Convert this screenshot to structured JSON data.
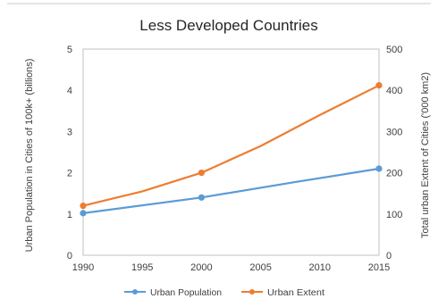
{
  "chart_data": {
    "type": "line",
    "title": "Less Developed Countries",
    "x_ticks": [
      1990,
      1995,
      2000,
      2005,
      2010,
      2015
    ],
    "xlim": [
      1990,
      2015
    ],
    "ylabel_left": "Urban Population in Cities of 100k+ (billions)",
    "ylabel_right": "Total urban Extent of Cities ('000 km2)",
    "ylim_left": [
      0,
      5
    ],
    "yticks_left": [
      0,
      1,
      2,
      3,
      4,
      5
    ],
    "ylim_right": [
      0,
      500
    ],
    "yticks_right": [
      0,
      100,
      200,
      300,
      400,
      500
    ],
    "grid": false,
    "legend_position": "bottom",
    "series": [
      {
        "name": "Urban Population",
        "axis": "left",
        "color": "#5B9BD5",
        "x": [
          1990,
          2000,
          2015
        ],
        "y": [
          1.02,
          1.4,
          2.1
        ],
        "line_x": [
          1990,
          2000,
          2008,
          2015
        ],
        "line_y": [
          1.02,
          1.4,
          1.78,
          2.1
        ]
      },
      {
        "name": "Urban Extent",
        "axis": "right",
        "color": "#ED7D31",
        "x": [
          1990,
          2000,
          2015
        ],
        "y": [
          120,
          200,
          412
        ],
        "line_x": [
          1990,
          1995,
          2000,
          2005,
          2010,
          2015
        ],
        "line_y": [
          120,
          155,
          200,
          265,
          340,
          412
        ]
      }
    ]
  }
}
